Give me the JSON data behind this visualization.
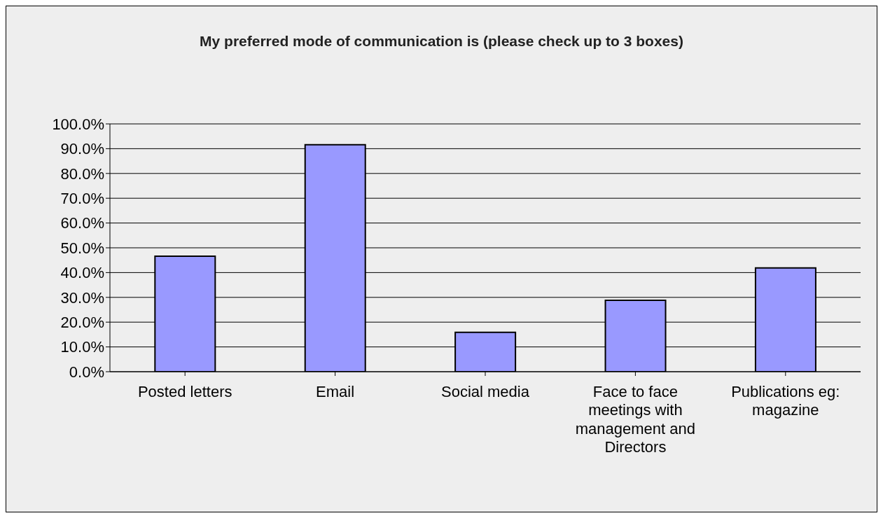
{
  "chart_data": {
    "type": "bar",
    "title": "My preferred mode of communication is (please check up to 3 boxes)",
    "categories": [
      "Posted letters",
      "Email",
      "Social media",
      "Face to face meetings with management and Directors",
      "Publications eg: magazine"
    ],
    "values": [
      46.6,
      91.6,
      15.9,
      28.8,
      41.9
    ],
    "color": "#9999ff",
    "ylim": [
      0,
      100
    ],
    "yticks": [
      {
        "value": 0,
        "label": "0.0%"
      },
      {
        "value": 10,
        "label": "10.0%"
      },
      {
        "value": 20,
        "label": "20.0%"
      },
      {
        "value": 30,
        "label": "30.0%"
      },
      {
        "value": 40,
        "label": "40.0%"
      },
      {
        "value": 50,
        "label": "50.0%"
      },
      {
        "value": 60,
        "label": "60.0%"
      },
      {
        "value": 70,
        "label": "70.0%"
      },
      {
        "value": 80,
        "label": "80.0%"
      },
      {
        "value": 90,
        "label": "90.0%"
      },
      {
        "value": 100,
        "label": "100.0%"
      }
    ],
    "grid": "y"
  }
}
